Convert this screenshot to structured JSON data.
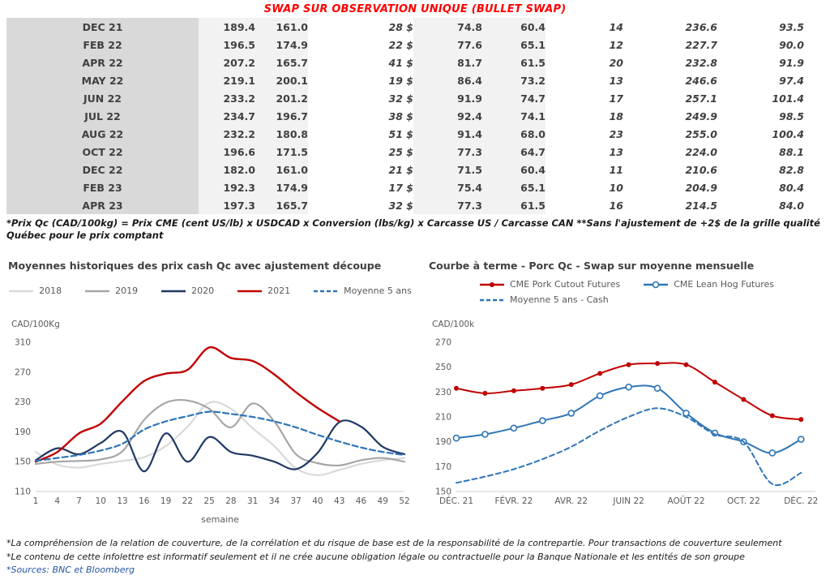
{
  "page": {
    "title": "SWAP SUR OBSERVATION UNIQUE (BULLET SWAP)",
    "table_footnote": "*Prix Qc (CAD/100kg) = Prix CME (cent US/lb) x USDCAD x Conversion (lbs/kg) x Carcasse US / Carcasse CAN **Sans l'ajustement de +2$ de la grille qualité Québec pour le prix comptant",
    "footnotes": [
      "*La compréhension de la relation de couverture, de la corrélation et du risque de base est de la responsabilité de la contrepartie. Pour transactions de couverture seulement",
      "*Le contenu de cette infolettre est informatif seulement et il ne crée aucune obligation légale ou contractuelle pour la Banque Nationale et les entités de son groupe"
    ],
    "sources_line": "*Sources: BNC et Bloomberg"
  },
  "colors": {
    "title_red": "#ff0000",
    "positive_green": "#00a550",
    "swap_blue": "#2e75b6",
    "dark_red_series": "#c00000",
    "navy_series": "#1f3864",
    "month_col_bg": "#d9d9d9",
    "num_col_bg": "#f2f2f2"
  },
  "swap_table": {
    "rows": [
      [
        "DEC 21",
        "189.4",
        "161.0",
        "28 $",
        "74.8",
        "60.4",
        "14",
        "236.6",
        "93.5"
      ],
      [
        "FEB 22",
        "196.5",
        "174.9",
        "22 $",
        "77.6",
        "65.1",
        "12",
        "227.7",
        "90.0"
      ],
      [
        "APR 22",
        "207.2",
        "165.7",
        "41 $",
        "81.7",
        "61.5",
        "20",
        "232.8",
        "91.9"
      ],
      [
        "MAY 22",
        "219.1",
        "200.1",
        "19 $",
        "86.4",
        "73.2",
        "13",
        "246.6",
        "97.4"
      ],
      [
        "JUN 22",
        "233.2",
        "201.2",
        "32 $",
        "91.9",
        "74.7",
        "17",
        "257.1",
        "101.4"
      ],
      [
        "JUL 22",
        "234.7",
        "196.7",
        "38 $",
        "92.4",
        "74.1",
        "18",
        "249.9",
        "98.5"
      ],
      [
        "AUG 22",
        "232.2",
        "180.8",
        "51 $",
        "91.4",
        "68.0",
        "23",
        "255.0",
        "100.4"
      ],
      [
        "OCT 22",
        "196.6",
        "171.5",
        "25 $",
        "77.3",
        "64.7",
        "13",
        "224.0",
        "88.1"
      ],
      [
        "DEC 22",
        "182.0",
        "161.0",
        "21 $",
        "71.5",
        "60.4",
        "11",
        "210.6",
        "82.8"
      ],
      [
        "FEB 23",
        "192.3",
        "174.9",
        "17 $",
        "75.4",
        "65.1",
        "10",
        "204.9",
        "80.4"
      ],
      [
        "APR 23",
        "197.3",
        "165.7",
        "32 $",
        "77.3",
        "61.5",
        "16",
        "214.5",
        "84.0"
      ]
    ]
  },
  "chart_data": [
    {
      "type": "line",
      "title": "Moyennes historiques des prix cash Qc avec ajustement découpe",
      "unit_label": "CAD/100Kg",
      "x_axis_label": "semaine",
      "xlim": [
        1,
        52
      ],
      "ylim": [
        110,
        310
      ],
      "yticks": [
        110,
        150,
        190,
        230,
        270,
        310
      ],
      "xticks": [
        1,
        4,
        7,
        10,
        13,
        16,
        19,
        22,
        25,
        28,
        31,
        34,
        37,
        40,
        43,
        46,
        49,
        52
      ],
      "x": [
        1,
        4,
        7,
        10,
        13,
        16,
        19,
        22,
        25,
        28,
        31,
        34,
        37,
        40,
        43,
        46,
        49,
        52
      ],
      "grid": false,
      "smooth": true,
      "legend_position": "top",
      "legend_rows": [
        [
          0,
          1,
          2,
          3,
          4
        ]
      ],
      "legend_style": "centered",
      "series": [
        {
          "name": "2018",
          "color": "#d9d9d9",
          "dash": "",
          "width": 2.2,
          "marker": null,
          "values": [
            163,
            146,
            142,
            147,
            151,
            156,
            171,
            197,
            229,
            221,
            195,
            171,
            141,
            132,
            139,
            147,
            152,
            155
          ]
        },
        {
          "name": "2019",
          "color": "#a6a6a6",
          "dash": "",
          "width": 2.2,
          "marker": null,
          "values": [
            147,
            150,
            151,
            153,
            164,
            206,
            229,
            232,
            221,
            196,
            228,
            204,
            160,
            148,
            145,
            152,
            155,
            150
          ]
        },
        {
          "name": "2020",
          "color": "#1f3864",
          "dash": "",
          "width": 2.2,
          "marker": null,
          "values": [
            152,
            168,
            160,
            175,
            190,
            137,
            188,
            150,
            183,
            163,
            158,
            150,
            140,
            162,
            203,
            197,
            170,
            160
          ]
        },
        {
          "name": "2021",
          "color": "#c00000",
          "dash": "",
          "width": 2.4,
          "marker": null,
          "values": [
            150,
            163,
            188,
            201,
            231,
            258,
            268,
            273,
            303,
            289,
            285,
            267,
            243,
            222,
            204,
            null,
            null,
            null
          ]
        },
        {
          "name": "Moyenne 5 ans",
          "color": "#2e75b6",
          "dash": "7,4",
          "width": 2.2,
          "marker": null,
          "values": [
            151,
            155,
            159,
            165,
            174,
            193,
            204,
            211,
            217,
            214,
            210,
            204,
            196,
            186,
            177,
            169,
            163,
            159
          ]
        }
      ]
    },
    {
      "type": "line",
      "title": "Courbe à terme - Porc Qc - Swap sur moyenne mensuelle",
      "unit_label": "CAD/100k",
      "x_axis_label": "",
      "xlim": [
        0,
        12.5
      ],
      "ylim": [
        150,
        270
      ],
      "yticks": [
        150,
        170,
        190,
        210,
        230,
        250,
        270
      ],
      "xticks": [
        0,
        2,
        4,
        6,
        8,
        10,
        12
      ],
      "xtick_labels": [
        "DÉC. 21",
        "FÉVR. 22",
        "AVR. 22",
        "JUIN 22",
        "AOÛT 22",
        "OCT. 22",
        "DÉC. 22"
      ],
      "x": [
        0,
        1,
        2,
        3,
        4,
        5,
        6,
        7,
        8,
        9,
        10,
        11,
        12
      ],
      "grid": false,
      "smooth": true,
      "legend_position": "top",
      "legend_rows": [
        [
          0,
          1
        ],
        [
          2
        ]
      ],
      "legend_style": "indented",
      "series": [
        {
          "name": "CME Pork Cutout Futures",
          "color": "#c00000",
          "dash": "",
          "width": 2,
          "marker": "dot",
          "values": [
            233,
            229,
            231,
            233,
            236,
            245,
            252,
            253,
            252,
            238,
            224,
            211,
            208
          ]
        },
        {
          "name": "CME Lean Hog Futures",
          "color": "#2e75b6",
          "dash": "",
          "width": 2,
          "marker": "circle",
          "values": [
            193,
            196,
            201,
            207,
            213,
            227,
            234,
            233,
            213,
            197,
            190,
            181,
            192
          ]
        },
        {
          "name": "Moyenne 5 ans - Cash",
          "color": "#2e75b6",
          "dash": "6,4",
          "width": 2,
          "marker": null,
          "values": [
            157,
            162,
            168,
            176,
            186,
            199,
            210,
            217,
            210,
            196,
            190,
            156,
            165
          ]
        }
      ]
    }
  ]
}
